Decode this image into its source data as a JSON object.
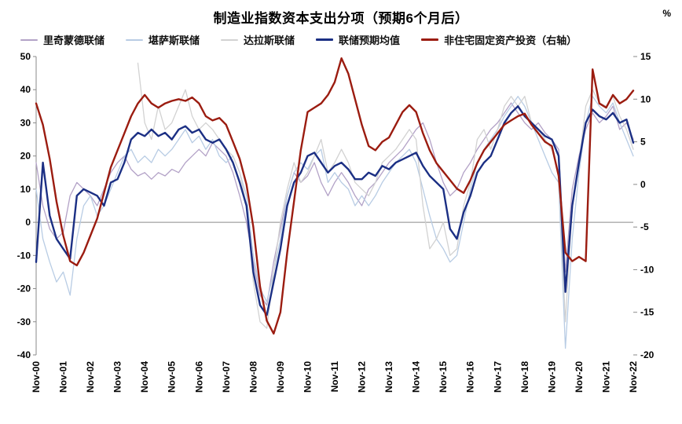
{
  "chart_data": {
    "type": "line",
    "title": "制造业指数资本支出分项（预期6个月后）",
    "left_axis": {
      "min": -40,
      "max": 50,
      "step": 10
    },
    "right_axis": {
      "min": -20,
      "max": 15,
      "step": 5,
      "unit": "%"
    },
    "x_tick_labels": [
      "Nov-00",
      "Nov-01",
      "Nov-02",
      "Nov-03",
      "Nov-04",
      "Nov-05",
      "Nov-06",
      "Nov-07",
      "Nov-08",
      "Nov-09",
      "Nov-10",
      "Nov-11",
      "Nov-12",
      "Nov-13",
      "Nov-14",
      "Nov-15",
      "Nov-16",
      "Nov-17",
      "Nov-18",
      "Nov-19",
      "Nov-20",
      "Nov-21",
      "Nov-22"
    ],
    "ticks_every": 4,
    "points_start": "Nov-00",
    "points_frequency": "quarterly",
    "series": [
      {
        "key": "richmond",
        "name": "里奇蒙德联储",
        "color": "#b3a2c7",
        "width": 1.3,
        "axis": "left",
        "values": [
          18,
          5,
          -2,
          -5,
          -3,
          8,
          12,
          10,
          8,
          5,
          10,
          15,
          18,
          20,
          16,
          14,
          15,
          13,
          15,
          14,
          16,
          15,
          18,
          20,
          22,
          20,
          24,
          22,
          20,
          15,
          8,
          0,
          -12,
          -22,
          -25,
          -12,
          -2,
          8,
          15,
          12,
          14,
          18,
          12,
          8,
          12,
          15,
          12,
          8,
          5,
          10,
          12,
          15,
          18,
          20,
          22,
          25,
          28,
          30,
          25,
          18,
          12,
          8,
          10,
          15,
          18,
          22,
          25,
          28,
          30,
          33,
          36,
          33,
          30,
          28,
          30,
          27,
          25,
          22,
          -15,
          10,
          20,
          28,
          33,
          30,
          32,
          35,
          28,
          30,
          25
        ]
      },
      {
        "key": "kansas",
        "name": "堪萨斯联储",
        "color": "#b8cce4",
        "width": 1.3,
        "axis": "left",
        "values": [
          10,
          -5,
          -12,
          -18,
          -15,
          -22,
          -5,
          5,
          8,
          2,
          5,
          10,
          15,
          20,
          22,
          18,
          20,
          18,
          22,
          20,
          22,
          25,
          28,
          24,
          26,
          22,
          25,
          20,
          18,
          20,
          15,
          8,
          -10,
          -20,
          -24,
          -15,
          -5,
          8,
          15,
          18,
          16,
          20,
          22,
          12,
          15,
          12,
          10,
          5,
          8,
          5,
          8,
          12,
          15,
          18,
          20,
          22,
          18,
          10,
          2,
          -5,
          -8,
          -12,
          -10,
          0,
          10,
          18,
          22,
          25,
          28,
          32,
          35,
          38,
          35,
          30,
          25,
          20,
          15,
          12,
          -38,
          -5,
          15,
          30,
          38,
          35,
          33,
          36,
          30,
          25,
          20
        ]
      },
      {
        "key": "dallas",
        "name": "达拉斯联储",
        "color": "#d2d2d2",
        "width": 1.3,
        "axis": "left",
        "values": [
          null,
          null,
          null,
          null,
          null,
          null,
          null,
          null,
          null,
          null,
          null,
          null,
          null,
          null,
          null,
          48,
          30,
          25,
          35,
          28,
          30,
          35,
          40,
          32,
          28,
          30,
          28,
          25,
          22,
          20,
          15,
          5,
          -18,
          -30,
          -32,
          -15,
          0,
          10,
          18,
          12,
          15,
          20,
          25,
          15,
          18,
          22,
          18,
          12,
          10,
          8,
          12,
          18,
          20,
          22,
          25,
          28,
          25,
          5,
          -8,
          -5,
          0,
          -10,
          -8,
          5,
          12,
          25,
          28,
          22,
          28,
          35,
          38,
          35,
          38,
          30,
          28,
          25,
          22,
          15,
          -30,
          5,
          18,
          35,
          40,
          36,
          35,
          38,
          32,
          28,
          22
        ]
      },
      {
        "key": "fed-mean",
        "name": "联储预期均值",
        "color": "#1b2f84",
        "width": 2.4,
        "axis": "left",
        "values": [
          -12,
          18,
          2,
          -5,
          -8,
          -11,
          8,
          10,
          9,
          8,
          5,
          12,
          13,
          18,
          25,
          27,
          26,
          28,
          26,
          27,
          25,
          28,
          29,
          27,
          28,
          25,
          24,
          25,
          22,
          18,
          12,
          5,
          -15,
          -25,
          -28,
          -18,
          -8,
          5,
          12,
          15,
          20,
          21,
          18,
          15,
          17,
          18,
          16,
          13,
          13,
          15,
          14,
          17,
          16,
          18,
          19,
          20,
          21,
          17,
          14,
          12,
          10,
          -2,
          -5,
          3,
          8,
          15,
          18,
          20,
          25,
          30,
          33,
          35,
          32,
          30,
          28,
          26,
          25,
          20,
          -21,
          5,
          18,
          30,
          34,
          32,
          31,
          33,
          30,
          31,
          24
        ]
      },
      {
        "key": "nonres-fai",
        "name": "非住宅固定资产投资（右轴）",
        "color": "#9b1c10",
        "width": 2.4,
        "axis": "right",
        "values": [
          9.5,
          7,
          3,
          -2,
          -6,
          -9,
          -9.5,
          -8,
          -6,
          -4,
          -1,
          2,
          4,
          6,
          8,
          9.5,
          10.5,
          9.5,
          9,
          9.5,
          9.8,
          10,
          9.8,
          10.2,
          9.5,
          8,
          7.5,
          7.8,
          7,
          5,
          3,
          0,
          -5,
          -12,
          -16,
          -17.5,
          -15,
          -8,
          -2,
          4,
          8.5,
          9,
          9.5,
          10.5,
          12,
          14.8,
          13,
          10,
          7,
          4.5,
          4,
          5,
          5.5,
          7,
          8.5,
          9.3,
          8.5,
          6,
          4,
          2.5,
          1.5,
          0.5,
          -0.5,
          -1,
          0.5,
          2.5,
          4,
          5,
          6,
          7,
          7.5,
          8,
          8.3,
          7,
          6,
          5,
          4.5,
          1,
          -8,
          -9,
          -8.5,
          -9,
          13.5,
          9.5,
          9,
          10.5,
          9.5,
          10,
          11
        ]
      }
    ]
  }
}
